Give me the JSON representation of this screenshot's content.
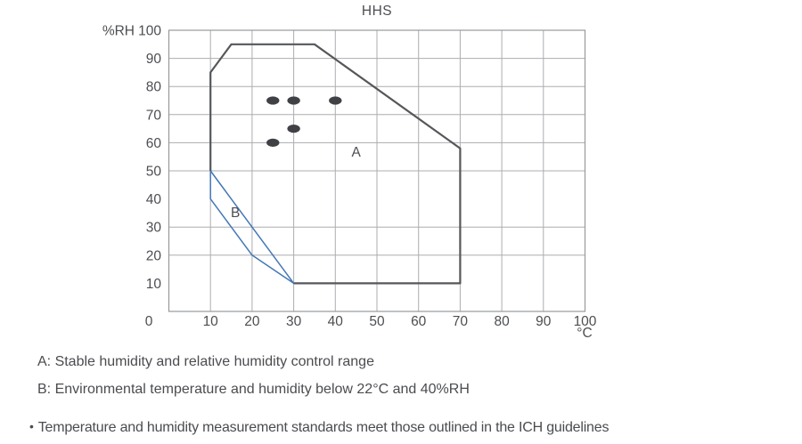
{
  "chart_data": {
    "type": "scatter",
    "title": "HHS",
    "x_axis": {
      "unit": "°C",
      "range": [
        0,
        100
      ],
      "ticks": [
        0,
        10,
        20,
        30,
        40,
        50,
        60,
        70,
        80,
        90,
        100
      ]
    },
    "y_axis": {
      "unit": "%RH",
      "range": [
        0,
        100
      ],
      "ticks": [
        10,
        20,
        30,
        40,
        50,
        60,
        70,
        80,
        90,
        100
      ]
    },
    "grid": {
      "x_lines": [
        10,
        20,
        30,
        40,
        50,
        60,
        70,
        80,
        90
      ],
      "y_lines": [
        20,
        30,
        50,
        60,
        70,
        80,
        90
      ]
    },
    "regions": {
      "a": {
        "label": "A",
        "label_at": [
          45,
          55
        ],
        "outline": [
          [
            10,
            50
          ],
          [
            10,
            85
          ],
          [
            15,
            95
          ],
          [
            35,
            95
          ],
          [
            70,
            58
          ],
          [
            70,
            10
          ],
          [
            30,
            10
          ]
        ],
        "closed": false,
        "color": "#55575a"
      },
      "b": {
        "label": "B",
        "label_at": [
          16,
          33.5
        ],
        "outline": [
          [
            10,
            50
          ],
          [
            30,
            10
          ],
          [
            20,
            20
          ],
          [
            10,
            40
          ]
        ],
        "closed": true,
        "color": "#4577b6"
      }
    },
    "points": {
      "color": "#3f4144",
      "coords": [
        [
          25,
          75
        ],
        [
          30,
          75
        ],
        [
          40,
          75
        ],
        [
          30,
          65
        ],
        [
          25,
          60
        ]
      ]
    },
    "legend_position": "none",
    "grid_on": true
  },
  "notes": {
    "a": "A: Stable humidity and relative humidity control range",
    "b": "B: Environmental temperature and humidity below 22°C and 40%RH",
    "bullet_marker": "•",
    "ich": "Temperature and humidity measurement standards meet those outlined in the ICH guidelines"
  },
  "colors": {
    "line_dark": "#55575a",
    "line_blue": "#4577b6",
    "grid": "#abadb0",
    "text": "#4c4e52"
  }
}
